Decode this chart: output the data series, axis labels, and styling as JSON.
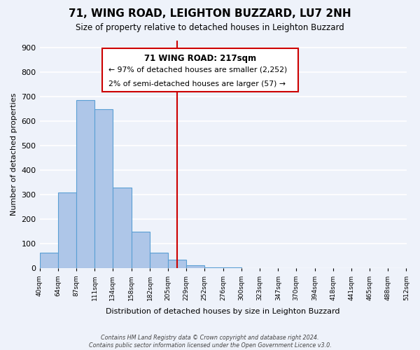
{
  "title": "71, WING ROAD, LEIGHTON BUZZARD, LU7 2NH",
  "subtitle": "Size of property relative to detached houses in Leighton Buzzard",
  "xlabel": "Distribution of detached houses by size in Leighton Buzzard",
  "ylabel": "Number of detached properties",
  "bar_edges": [
    40,
    64,
    87,
    111,
    134,
    158,
    182,
    205,
    229,
    252,
    276,
    300,
    323,
    347,
    370,
    394,
    418,
    441,
    465,
    488,
    512
  ],
  "bar_heights": [
    65,
    310,
    685,
    650,
    330,
    150,
    65,
    35,
    12,
    5,
    3,
    2,
    1,
    0,
    0,
    0,
    1,
    0,
    1,
    0
  ],
  "bar_color": "#aec6e8",
  "bar_edge_color": "#5a9fd4",
  "vline_x": 217,
  "vline_color": "#cc0000",
  "annotation_title": "71 WING ROAD: 217sqm",
  "annotation_line1": "← 97% of detached houses are smaller (2,252)",
  "annotation_line2": "2% of semi-detached houses are larger (57) →",
  "annotation_box_color": "#ffffff",
  "annotation_box_edge": "#cc0000",
  "ylim": [
    0,
    930
  ],
  "xlim": [
    40,
    512
  ],
  "tick_labels": [
    "40sqm",
    "64sqm",
    "87sqm",
    "111sqm",
    "134sqm",
    "158sqm",
    "182sqm",
    "205sqm",
    "229sqm",
    "252sqm",
    "276sqm",
    "300sqm",
    "323sqm",
    "347sqm",
    "370sqm",
    "394sqm",
    "418sqm",
    "441sqm",
    "465sqm",
    "488sqm",
    "512sqm"
  ],
  "yticks": [
    0,
    100,
    200,
    300,
    400,
    500,
    600,
    700,
    800,
    900
  ],
  "footer_line1": "Contains HM Land Registry data © Crown copyright and database right 2024.",
  "footer_line2": "Contains public sector information licensed under the Open Government Licence v3.0.",
  "background_color": "#eef2fa",
  "grid_color": "#ffffff"
}
